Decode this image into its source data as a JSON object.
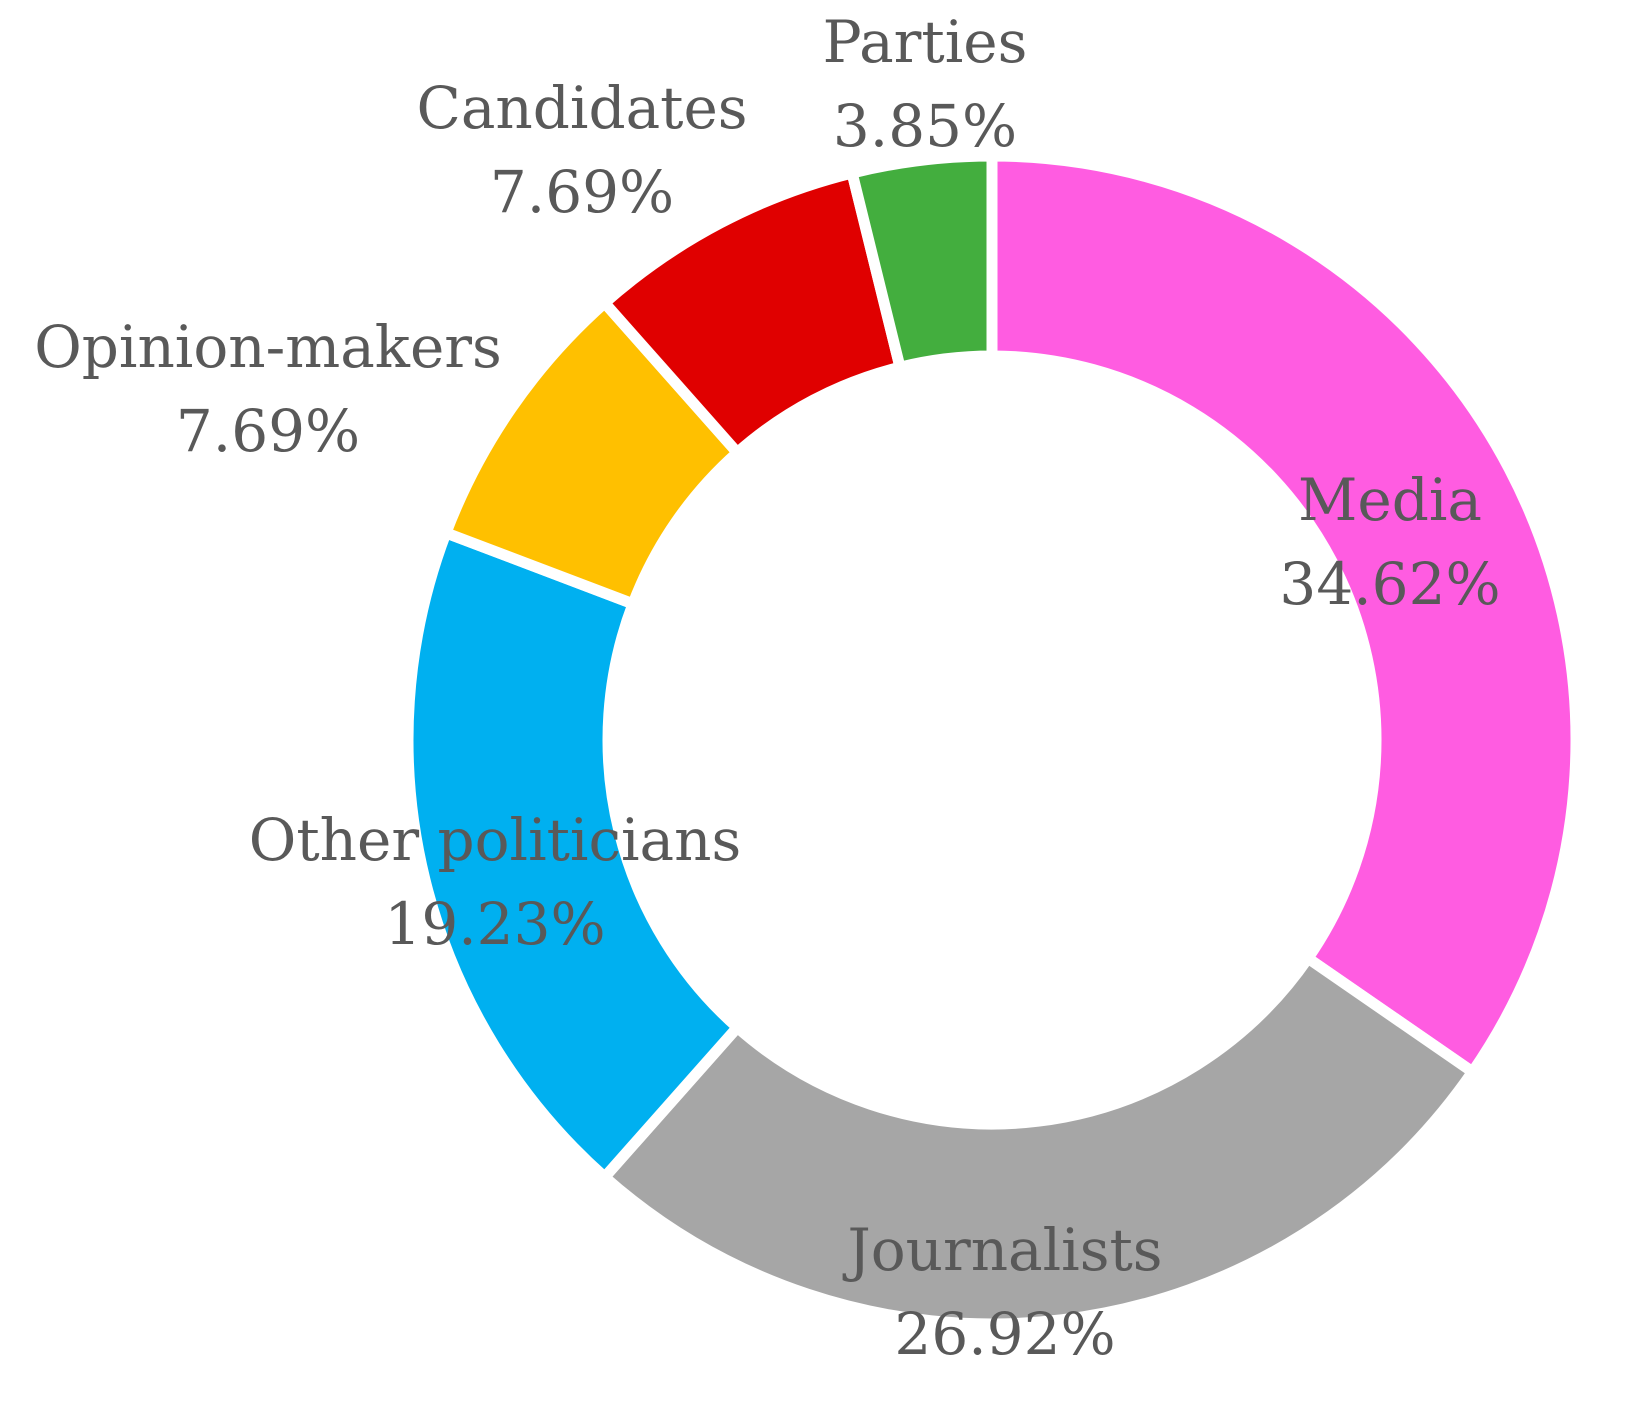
{
  "chart_data": {
    "type": "pie",
    "donut": true,
    "slices": [
      {
        "label": "Media",
        "value": 34.62,
        "value_label": "34.62%",
        "color": "#FF5CE1"
      },
      {
        "label": "Journalists",
        "value": 26.92,
        "value_label": "26.92%",
        "color": "#A6A6A6"
      },
      {
        "label": "Other politicians",
        "value": 19.23,
        "value_label": "19.23%",
        "color": "#00B0F0"
      },
      {
        "label": "Opinion-makers",
        "value": 7.69,
        "value_label": "7.69%",
        "color": "#FFC000"
      },
      {
        "label": "Candidates",
        "value": 7.69,
        "value_label": "7.69%",
        "color": "#E00000"
      },
      {
        "label": "Parties",
        "value": 3.85,
        "value_label": "3.85%",
        "color": "#43AE3E"
      }
    ],
    "start": "12 o'clock",
    "direction": "clockwise"
  }
}
